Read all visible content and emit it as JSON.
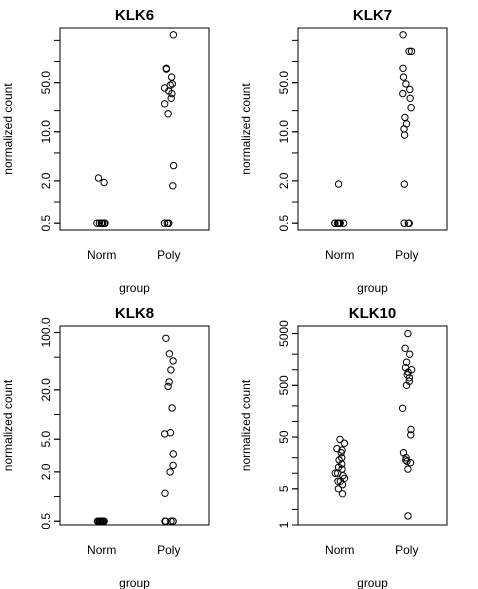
{
  "chart_data": [
    {
      "type": "scatter",
      "title": "KLK6",
      "xlabel": "group",
      "ylabel": "normalized count",
      "categories": [
        "Norm",
        "Poly"
      ],
      "y_scale": "log",
      "ylim": [
        0.4,
        300
      ],
      "y_ticks": [
        0.5,
        2.0,
        10.0,
        50.0
      ],
      "y_tick_labels": [
        "0.5",
        "2.0",
        "10.0",
        "50.0"
      ],
      "series": [
        {
          "category": "Norm",
          "values": [
            2.2,
            1.9,
            0.5,
            0.5,
            0.5,
            0.5,
            0.5,
            0.5,
            0.5,
            0.5,
            0.5,
            0.5
          ]
        },
        {
          "category": "Poly",
          "values": [
            240,
            80,
            78,
            60,
            48,
            46,
            42,
            38,
            35,
            30,
            25,
            18,
            3.3,
            1.7,
            0.5,
            0.5,
            0.5,
            0.5
          ]
        }
      ]
    },
    {
      "type": "scatter",
      "title": "KLK7",
      "xlabel": "group",
      "ylabel": "normalized count",
      "categories": [
        "Norm",
        "Poly"
      ],
      "y_scale": "log",
      "ylim": [
        0.4,
        300
      ],
      "y_ticks": [
        0.5,
        2.0,
        10.0,
        50.0
      ],
      "y_tick_labels": [
        "0.5",
        "2.0",
        "10.0",
        "50.0"
      ],
      "series": [
        {
          "category": "Norm",
          "values": [
            1.8,
            0.5,
            0.5,
            0.5,
            0.5,
            0.5,
            0.5,
            0.5,
            0.5,
            0.5
          ]
        },
        {
          "category": "Poly",
          "values": [
            240,
            140,
            140,
            80,
            60,
            48,
            40,
            35,
            30,
            22,
            16,
            13,
            11,
            9,
            1.8,
            0.5,
            0.5,
            0.5
          ]
        }
      ]
    },
    {
      "type": "scatter",
      "title": "KLK8",
      "xlabel": "group",
      "ylabel": "normalized count",
      "categories": [
        "Norm",
        "Poly"
      ],
      "y_scale": "log",
      "ylim": [
        0.45,
        120
      ],
      "y_ticks": [
        0.5,
        2.0,
        5.0,
        20.0,
        100.0
      ],
      "y_tick_labels": [
        "0.5",
        "2.0",
        "5.0",
        "20.0",
        "100.0"
      ],
      "series": [
        {
          "category": "Norm",
          "values": [
            0.5,
            0.5,
            0.5,
            0.5,
            0.5,
            0.5,
            0.5,
            0.5,
            0.5,
            0.5,
            0.5,
            0.5
          ]
        },
        {
          "category": "Poly",
          "values": [
            85,
            55,
            45,
            35,
            25,
            22,
            12,
            6,
            5.8,
            3.3,
            2.4,
            2.0,
            1.1,
            0.5,
            0.5,
            0.5,
            0.5,
            0.5
          ]
        }
      ]
    },
    {
      "type": "scatter",
      "title": "KLK10",
      "xlabel": "group",
      "ylabel": "normalized count",
      "categories": [
        "Norm",
        "Poly"
      ],
      "y_scale": "log",
      "ylim": [
        1,
        7000
      ],
      "y_ticks": [
        1,
        5,
        50,
        500,
        5000
      ],
      "y_tick_labels": [
        "1",
        "5",
        "50",
        "500",
        "5000"
      ],
      "series": [
        {
          "category": "Norm",
          "values": [
            45,
            38,
            30,
            28,
            25,
            20,
            18,
            15,
            13,
            12,
            10,
            10,
            9,
            8,
            7,
            7,
            6,
            5,
            4
          ]
        },
        {
          "category": "Poly",
          "values": [
            5000,
            2600,
            2000,
            1400,
            1100,
            1000,
            900,
            800,
            700,
            600,
            500,
            180,
            70,
            55,
            25,
            20,
            18,
            17,
            16,
            12,
            1.5
          ]
        }
      ]
    }
  ]
}
